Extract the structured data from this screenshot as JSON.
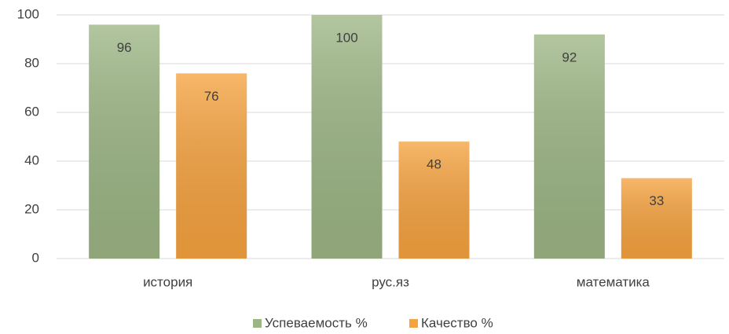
{
  "chart_data": {
    "type": "bar",
    "categories": [
      "история",
      "рус.яз",
      "математика"
    ],
    "series": [
      {
        "name": "Успеваемость %",
        "color": "#9cb584",
        "values": [
          96,
          100,
          92
        ]
      },
      {
        "name": "Качество %",
        "color": "#f5a23f",
        "values": [
          76,
          48,
          33
        ]
      }
    ],
    "ylim": [
      0,
      100
    ],
    "yticks": [
      0,
      20,
      40,
      60,
      80,
      100
    ],
    "grid": true,
    "legend": "bottom"
  }
}
